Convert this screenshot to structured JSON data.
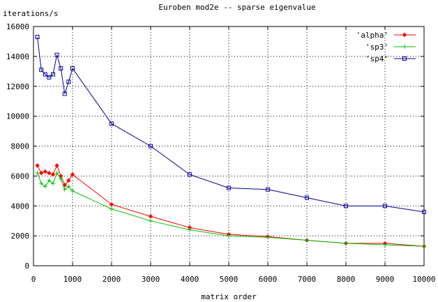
{
  "chart_data": {
    "type": "line",
    "title": "Euroben mod2e -- sparse eigenvalue",
    "xlabel": "matrix order",
    "ylabel": "iterations/s",
    "xlim": [
      0,
      10000
    ],
    "ylim": [
      0,
      16000
    ],
    "xticks": [
      0,
      1000,
      2000,
      3000,
      4000,
      5000,
      6000,
      7000,
      8000,
      9000,
      10000
    ],
    "yticks": [
      0,
      2000,
      4000,
      6000,
      8000,
      10000,
      12000,
      14000,
      16000
    ],
    "grid": true,
    "legend_position": "top-right",
    "x": [
      100,
      200,
      300,
      400,
      500,
      600,
      700,
      800,
      900,
      1000,
      2000,
      3000,
      4000,
      5000,
      6000,
      7000,
      8000,
      9000,
      10000
    ],
    "series": [
      {
        "name": "'alpha'",
        "color": "#ff0000",
        "marker": "diamond",
        "values": [
          6700,
          6200,
          6300,
          6200,
          6100,
          6700,
          6000,
          5400,
          5700,
          6100,
          4100,
          3300,
          2550,
          2100,
          1950,
          1700,
          1500,
          1500,
          1300
        ]
      },
      {
        "name": "'sp3'",
        "color": "#00c000",
        "marker": "plus",
        "values": [
          6200,
          5500,
          5300,
          5700,
          5500,
          6200,
          5800,
          5100,
          5300,
          5000,
          3800,
          3000,
          2400,
          2000,
          1900,
          1700,
          1500,
          1400,
          1300
        ]
      },
      {
        "name": "'sp4'",
        "color": "#0000a0",
        "marker": "square",
        "values": [
          15300,
          13100,
          12800,
          12600,
          12800,
          14100,
          13200,
          11500,
          12300,
          13200,
          9500,
          8000,
          6100,
          5200,
          5100,
          4550,
          4000,
          4000,
          3600
        ]
      }
    ]
  }
}
